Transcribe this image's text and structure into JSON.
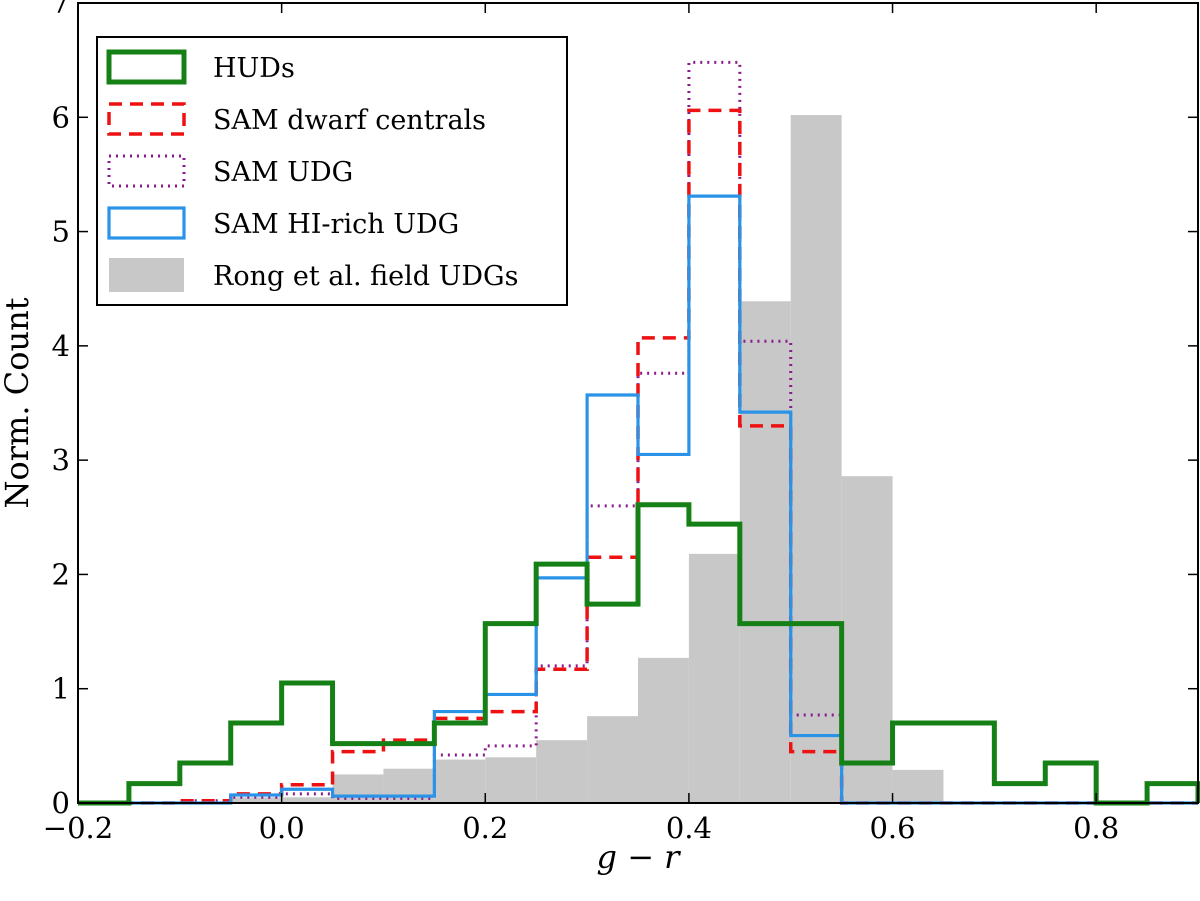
{
  "chart_data": {
    "type": "bar",
    "xlabel": "g − r",
    "ylabel": "Norm. Count",
    "xlim": [
      -0.2,
      0.9
    ],
    "ylim": [
      0,
      7
    ],
    "xticks": [
      -0.2,
      0.0,
      0.2,
      0.4,
      0.6,
      0.8
    ],
    "xtick_labels": [
      "−0.2",
      "0.0",
      "0.2",
      "0.4",
      "0.6",
      "0.8"
    ],
    "yticks": [
      0,
      1,
      2,
      3,
      4,
      5,
      6,
      7
    ],
    "ytick_labels": [
      "0",
      "1",
      "2",
      "3",
      "4",
      "5",
      "6",
      "7"
    ],
    "grid": false,
    "legend_position": "top-left",
    "bin_edges": [
      -0.2,
      -0.15,
      -0.1,
      -0.05,
      0.0,
      0.05,
      0.1,
      0.15,
      0.2,
      0.25,
      0.3,
      0.35,
      0.4,
      0.45,
      0.5,
      0.55,
      0.6,
      0.65,
      0.7,
      0.75,
      0.8,
      0.85,
      0.9
    ],
    "series": [
      {
        "name": "Rong et al. field UDGs",
        "style": "filled",
        "color": "#c8c8c8",
        "values": [
          0,
          0,
          0,
          0.05,
          0.05,
          0.25,
          0.3,
          0.38,
          0.4,
          0.55,
          0.76,
          1.27,
          2.18,
          4.39,
          6.02,
          2.86,
          0.29,
          0,
          0,
          0,
          0,
          0
        ]
      },
      {
        "name": "SAM UDG",
        "style": "dotted",
        "color": "#8b1a8b",
        "values": [
          0,
          0,
          0.02,
          0.05,
          0.08,
          0.04,
          0.04,
          0.42,
          0.5,
          1.2,
          2.6,
          3.76,
          6.48,
          4.04,
          0.77,
          0,
          0,
          0,
          0,
          0,
          0,
          0
        ]
      },
      {
        "name": "SAM dwarf centrals",
        "style": "dashed",
        "color": "#ee1111",
        "values": [
          0,
          0,
          0.02,
          0.08,
          0.16,
          0.45,
          0.55,
          0.74,
          0.8,
          1.17,
          2.15,
          4.07,
          6.06,
          3.3,
          0.45,
          0,
          0,
          0,
          0,
          0,
          0,
          0
        ]
      },
      {
        "name": "SAM HI-rich UDG",
        "style": "solid",
        "color": "#2a93e8",
        "values": [
          0,
          0,
          0,
          0.07,
          0.12,
          0.06,
          0.06,
          0.8,
          0.95,
          1.97,
          3.57,
          3.05,
          5.31,
          3.42,
          0.59,
          0,
          0,
          0,
          0,
          0,
          0,
          0
        ]
      },
      {
        "name": "HUDs",
        "style": "thick",
        "color": "#158015",
        "values": [
          0,
          0.17,
          0.35,
          0.7,
          1.05,
          0.52,
          0.52,
          0.7,
          1.57,
          2.09,
          1.74,
          2.61,
          2.44,
          1.57,
          1.57,
          0.35,
          0.7,
          0.7,
          0.17,
          0.35,
          0,
          0.17
        ]
      }
    ],
    "legend": [
      {
        "label": "HUDs",
        "series": "HUDs"
      },
      {
        "label": "SAM dwarf centrals",
        "series": "SAM dwarf centrals"
      },
      {
        "label": "SAM UDG",
        "series": "SAM UDG"
      },
      {
        "label": "SAM HI-rich UDG",
        "series": "SAM HI-rich UDG"
      },
      {
        "label": "Rong et al. field UDGs",
        "series": "Rong et al. field UDGs"
      }
    ]
  }
}
